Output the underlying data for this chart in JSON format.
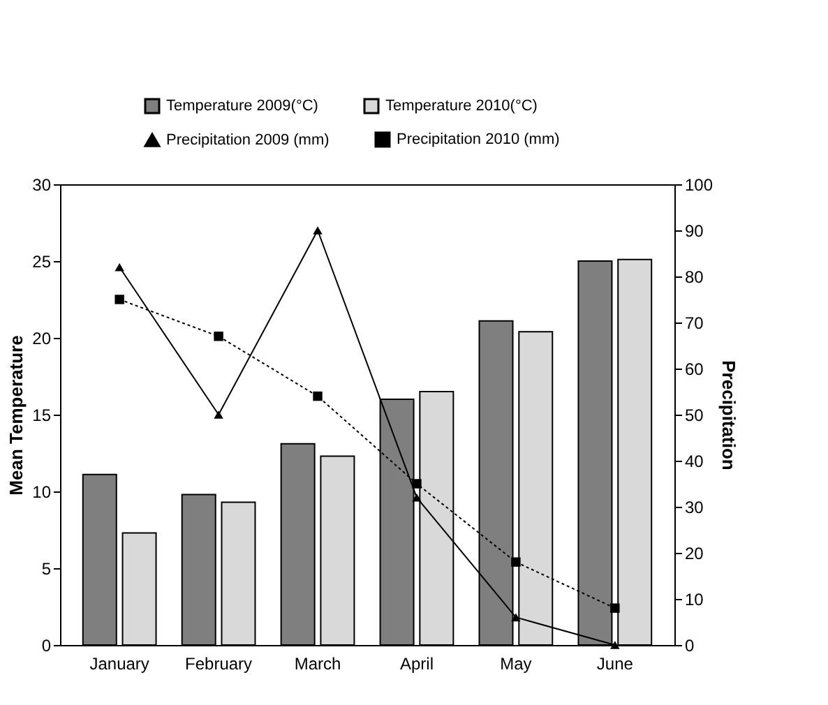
{
  "chart_data": {
    "type": "bar",
    "categories": [
      "January",
      "February",
      "March",
      "April",
      "May",
      "June"
    ],
    "series": [
      {
        "name": "Temperature 2009(°C)",
        "type": "bar",
        "color": "#7f7f7f",
        "values": [
          11.1,
          9.8,
          13.1,
          16.0,
          21.1,
          25.0
        ]
      },
      {
        "name": "Temperature 2010(°C)",
        "type": "bar",
        "color": "#d9d9d9",
        "values": [
          7.3,
          9.3,
          12.3,
          16.5,
          20.4,
          25.1
        ]
      },
      {
        "name": "Precipitation 2009 (mm)",
        "type": "line",
        "axis": "y2",
        "color": "#000000",
        "marker": "triangle",
        "line_style": "solid",
        "values": [
          82,
          50,
          90,
          32,
          6,
          0
        ]
      },
      {
        "name": "Precipitation 2010 (mm)",
        "type": "line",
        "axis": "y2",
        "color": "#000000",
        "marker": "square",
        "line_style": "dotted",
        "values": [
          75,
          67,
          54,
          35,
          18,
          8
        ]
      }
    ],
    "ylabel": "Mean Temperature",
    "y2label": "Precipitation",
    "ylim": [
      0,
      30
    ],
    "yticks": [
      0,
      5,
      10,
      15,
      20,
      25,
      30
    ],
    "y2lim": [
      0,
      100
    ],
    "y2ticks": [
      0,
      10,
      20,
      30,
      40,
      50,
      60,
      70,
      80,
      90,
      100
    ],
    "legend": "top",
    "grid": false
  }
}
